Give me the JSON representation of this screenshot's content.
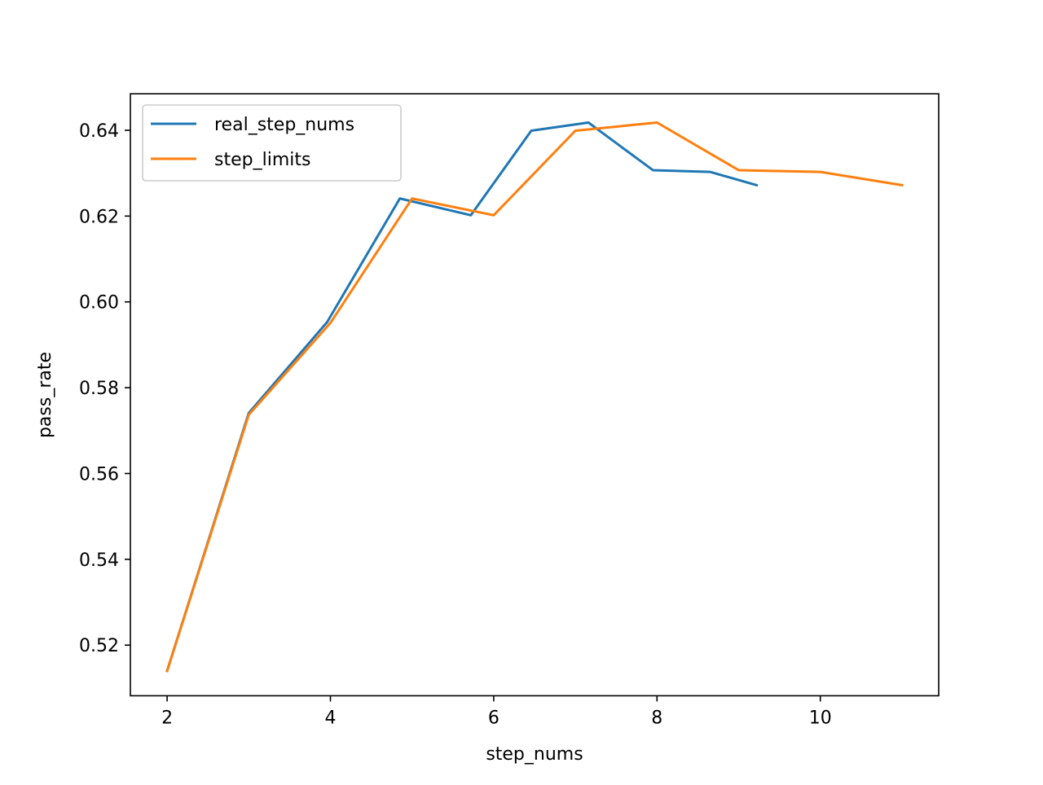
{
  "chart_data": {
    "type": "line",
    "title": "",
    "xlabel": "step_nums",
    "ylabel": "pass_rate",
    "xlim": [
      1.55,
      11.45
    ],
    "ylim": [
      0.5082,
      0.6485
    ],
    "xticks": [
      2,
      4,
      6,
      8,
      10
    ],
    "xtick_labels": [
      "2",
      "4",
      "6",
      "8",
      "10"
    ],
    "yticks": [
      0.52,
      0.54,
      0.56,
      0.58,
      0.6,
      0.62,
      0.64
    ],
    "ytick_labels": [
      "0.52",
      "0.54",
      "0.56",
      "0.58",
      "0.60",
      "0.62",
      "0.64"
    ],
    "grid": false,
    "legend_position": "upper-left",
    "series": [
      {
        "name": "real_step_nums",
        "color": "#1f77b4",
        "x": [
          2.0,
          3.0,
          3.96,
          4.85,
          5.72,
          6.46,
          7.16,
          7.95,
          8.65,
          9.22
        ],
        "y": [
          0.514,
          0.5741,
          0.5953,
          0.6241,
          0.6202,
          0.6399,
          0.6418,
          0.6307,
          0.6303,
          0.6272
        ]
      },
      {
        "name": "step_limits",
        "color": "#ff7f0e",
        "x": [
          2,
          3,
          4,
          5,
          6,
          7,
          8,
          9,
          10,
          11
        ],
        "y": [
          0.514,
          0.5737,
          0.5951,
          0.6241,
          0.6202,
          0.6399,
          0.6418,
          0.6307,
          0.6303,
          0.6272
        ]
      }
    ]
  }
}
